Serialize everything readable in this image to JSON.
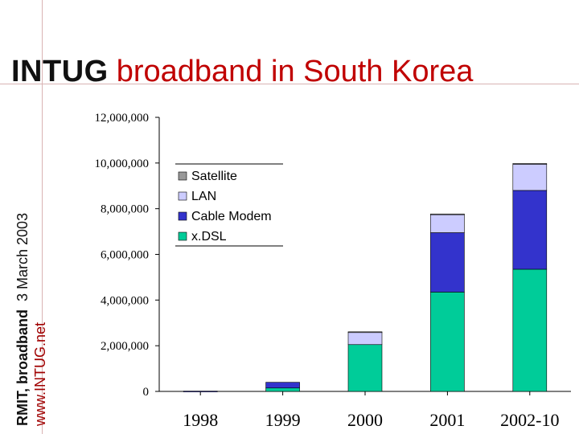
{
  "slide": {
    "title_brand": "INTUG",
    "title_main": "broadband in South Korea",
    "side_label_bold": "RMIT, broadband",
    "side_label_date": "3 March 2003",
    "side_label_url": "www.INTUG.net"
  },
  "chart_data": {
    "type": "bar",
    "stacked": true,
    "categories": [
      "1998",
      "1999",
      "2000",
      "2001",
      "2002-10"
    ],
    "series": [
      {
        "name": "x.DSL",
        "color": "#00cc99",
        "values": [
          0,
          150000,
          2050000,
          4350000,
          5350000
        ]
      },
      {
        "name": "Cable Modem",
        "color": "#3333cc",
        "values": [
          14000,
          250000,
          0,
          2600000,
          3450000
        ]
      },
      {
        "name": "LAN",
        "color": "#ccccff",
        "values": [
          0,
          0,
          550000,
          800000,
          1150000
        ]
      },
      {
        "name": "Satellite",
        "color": "#999999",
        "values": [
          0,
          0,
          10000,
          20000,
          30000
        ]
      }
    ],
    "legend_order": [
      "Satellite",
      "LAN",
      "Cable Modem",
      "x.DSL"
    ],
    "legend_position": "top-left",
    "ylim": [
      0,
      12000000
    ],
    "yticks": [
      0,
      2000000,
      4000000,
      6000000,
      8000000,
      10000000,
      12000000
    ],
    "ytick_labels": [
      "0",
      "2,000,000",
      "4,000,000",
      "6,000,000",
      "8,000,000",
      "10,000,000",
      "12,000,000"
    ],
    "grid": false,
    "title": "",
    "xlabel": "",
    "ylabel": ""
  }
}
